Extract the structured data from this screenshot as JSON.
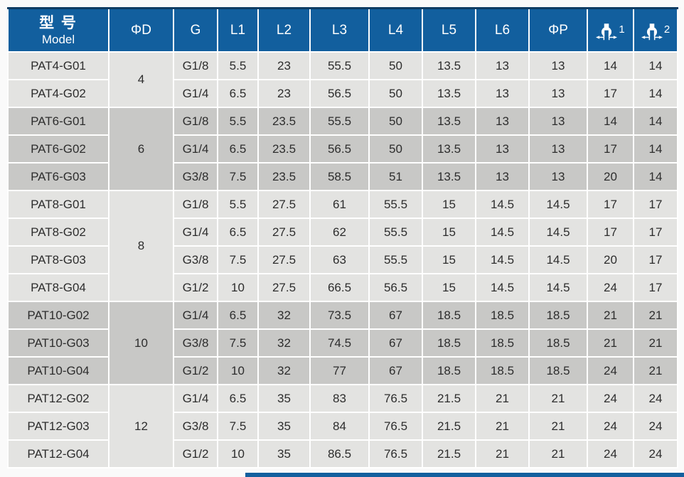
{
  "colors": {
    "header_blue": "#125f9e",
    "header_top_line": "#0e3c63",
    "row_light": "#e3e3e1",
    "row_dark": "#c8c8c6",
    "grid_white": "#ffffff",
    "text_dark": "#2d2d2d",
    "header_text": "#ffffff",
    "page_bg": "#fafafa"
  },
  "table": {
    "header": {
      "model_zh": "型 号",
      "model_en": "Model",
      "cols": [
        "ΦD",
        "G",
        "L1",
        "L2",
        "L3",
        "L4",
        "L5",
        "L6",
        "ΦP"
      ],
      "wrench1": {
        "icon": "wrench-size-icon",
        "sup": "1"
      },
      "wrench2": {
        "icon": "wrench-size-icon",
        "sup": "2"
      }
    },
    "columns_meaning": [
      "Model",
      "ΦD",
      "G",
      "L1",
      "L2",
      "L3",
      "L4",
      "L5",
      "L6",
      "ΦP",
      "wrench1",
      "wrench2"
    ],
    "groups": [
      {
        "phi_d": "4",
        "tone": "light",
        "rows": [
          [
            "PAT4-G01",
            "G1/8",
            "5.5",
            "23",
            "55.5",
            "50",
            "13.5",
            "13",
            "13",
            "14",
            "14"
          ],
          [
            "PAT4-G02",
            "G1/4",
            "6.5",
            "23",
            "56.5",
            "50",
            "13.5",
            "13",
            "13",
            "17",
            "14"
          ]
        ]
      },
      {
        "phi_d": "6",
        "tone": "dark",
        "rows": [
          [
            "PAT6-G01",
            "G1/8",
            "5.5",
            "23.5",
            "55.5",
            "50",
            "13.5",
            "13",
            "13",
            "14",
            "14"
          ],
          [
            "PAT6-G02",
            "G1/4",
            "6.5",
            "23.5",
            "56.5",
            "50",
            "13.5",
            "13",
            "13",
            "17",
            "14"
          ],
          [
            "PAT6-G03",
            "G3/8",
            "7.5",
            "23.5",
            "58.5",
            "51",
            "13.5",
            "13",
            "13",
            "20",
            "14"
          ]
        ]
      },
      {
        "phi_d": "8",
        "tone": "light",
        "rows": [
          [
            "PAT8-G01",
            "G1/8",
            "5.5",
            "27.5",
            "61",
            "55.5",
            "15",
            "14.5",
            "14.5",
            "17",
            "17"
          ],
          [
            "PAT8-G02",
            "G1/4",
            "6.5",
            "27.5",
            "62",
            "55.5",
            "15",
            "14.5",
            "14.5",
            "17",
            "17"
          ],
          [
            "PAT8-G03",
            "G3/8",
            "7.5",
            "27.5",
            "63",
            "55.5",
            "15",
            "14.5",
            "14.5",
            "20",
            "17"
          ],
          [
            "PAT8-G04",
            "G1/2",
            "10",
            "27.5",
            "66.5",
            "56.5",
            "15",
            "14.5",
            "14.5",
            "24",
            "17"
          ]
        ]
      },
      {
        "phi_d": "10",
        "tone": "dark",
        "rows": [
          [
            "PAT10-G02",
            "G1/4",
            "6.5",
            "32",
            "73.5",
            "67",
            "18.5",
            "18.5",
            "18.5",
            "21",
            "21"
          ],
          [
            "PAT10-G03",
            "G3/8",
            "7.5",
            "32",
            "74.5",
            "67",
            "18.5",
            "18.5",
            "18.5",
            "21",
            "21"
          ],
          [
            "PAT10-G04",
            "G1/2",
            "10",
            "32",
            "77",
            "67",
            "18.5",
            "18.5",
            "18.5",
            "24",
            "21"
          ]
        ]
      },
      {
        "phi_d": "12",
        "tone": "light",
        "rows": [
          [
            "PAT12-G02",
            "G1/4",
            "6.5",
            "35",
            "83",
            "76.5",
            "21.5",
            "21",
            "21",
            "24",
            "24"
          ],
          [
            "PAT12-G03",
            "G3/8",
            "7.5",
            "35",
            "84",
            "76.5",
            "21.5",
            "21",
            "21",
            "24",
            "24"
          ],
          [
            "PAT12-G04",
            "G1/2",
            "10",
            "35",
            "86.5",
            "76.5",
            "21.5",
            "21",
            "21",
            "24",
            "24"
          ]
        ]
      }
    ]
  }
}
